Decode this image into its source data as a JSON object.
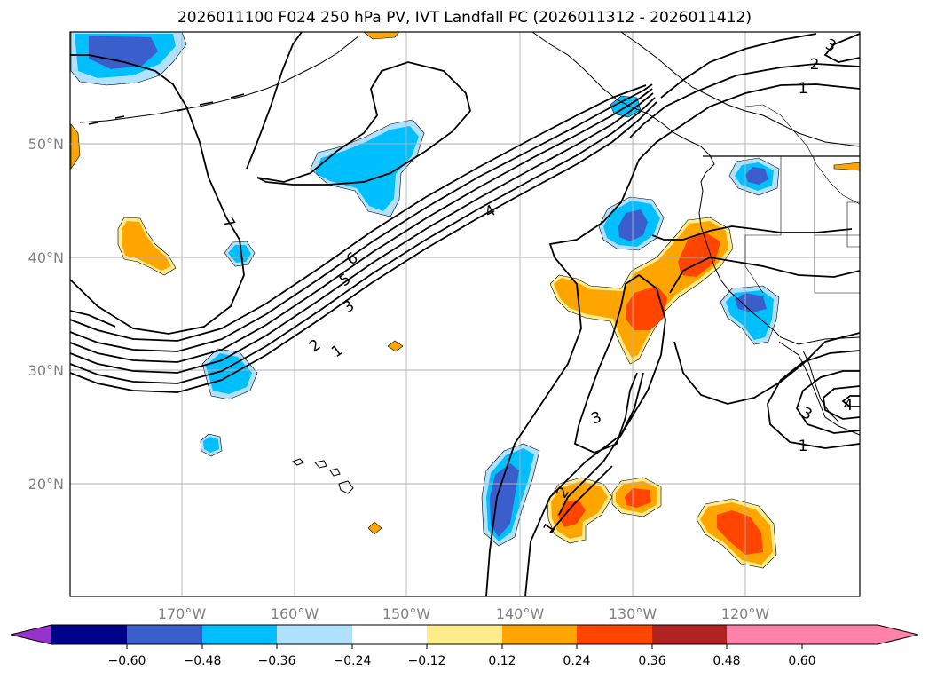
{
  "title": "2026011100 F024 250 hPa PV, IVT Landfall PC (2026011312 - 2026011412)",
  "lat_ticks": [
    "50°N",
    "40°N",
    "30°N",
    "20°N"
  ],
  "lon_ticks": [
    "170°W",
    "160°W",
    "150°W",
    "140°W",
    "130°W",
    "120°W"
  ],
  "colorbar": {
    "colors": [
      "#9932cc",
      "#00008b",
      "#3a5fcd",
      "#00bfff",
      "#b0e2ff",
      "#ffffff",
      "#ffec8b",
      "#ffa500",
      "#ff4500",
      "#b22222",
      "#ff82ab"
    ],
    "tick_labels": [
      "−0.60",
      "−0.48",
      "−0.36",
      "−0.24",
      "−0.12",
      "0.12",
      "0.24",
      "0.36",
      "0.48",
      "0.60"
    ]
  },
  "contour_labels": [
    "7",
    "6",
    "5",
    "4",
    "3",
    "2",
    "1",
    "3",
    "2",
    "1",
    "3",
    "2",
    "1",
    "3",
    "4",
    "1"
  ]
}
